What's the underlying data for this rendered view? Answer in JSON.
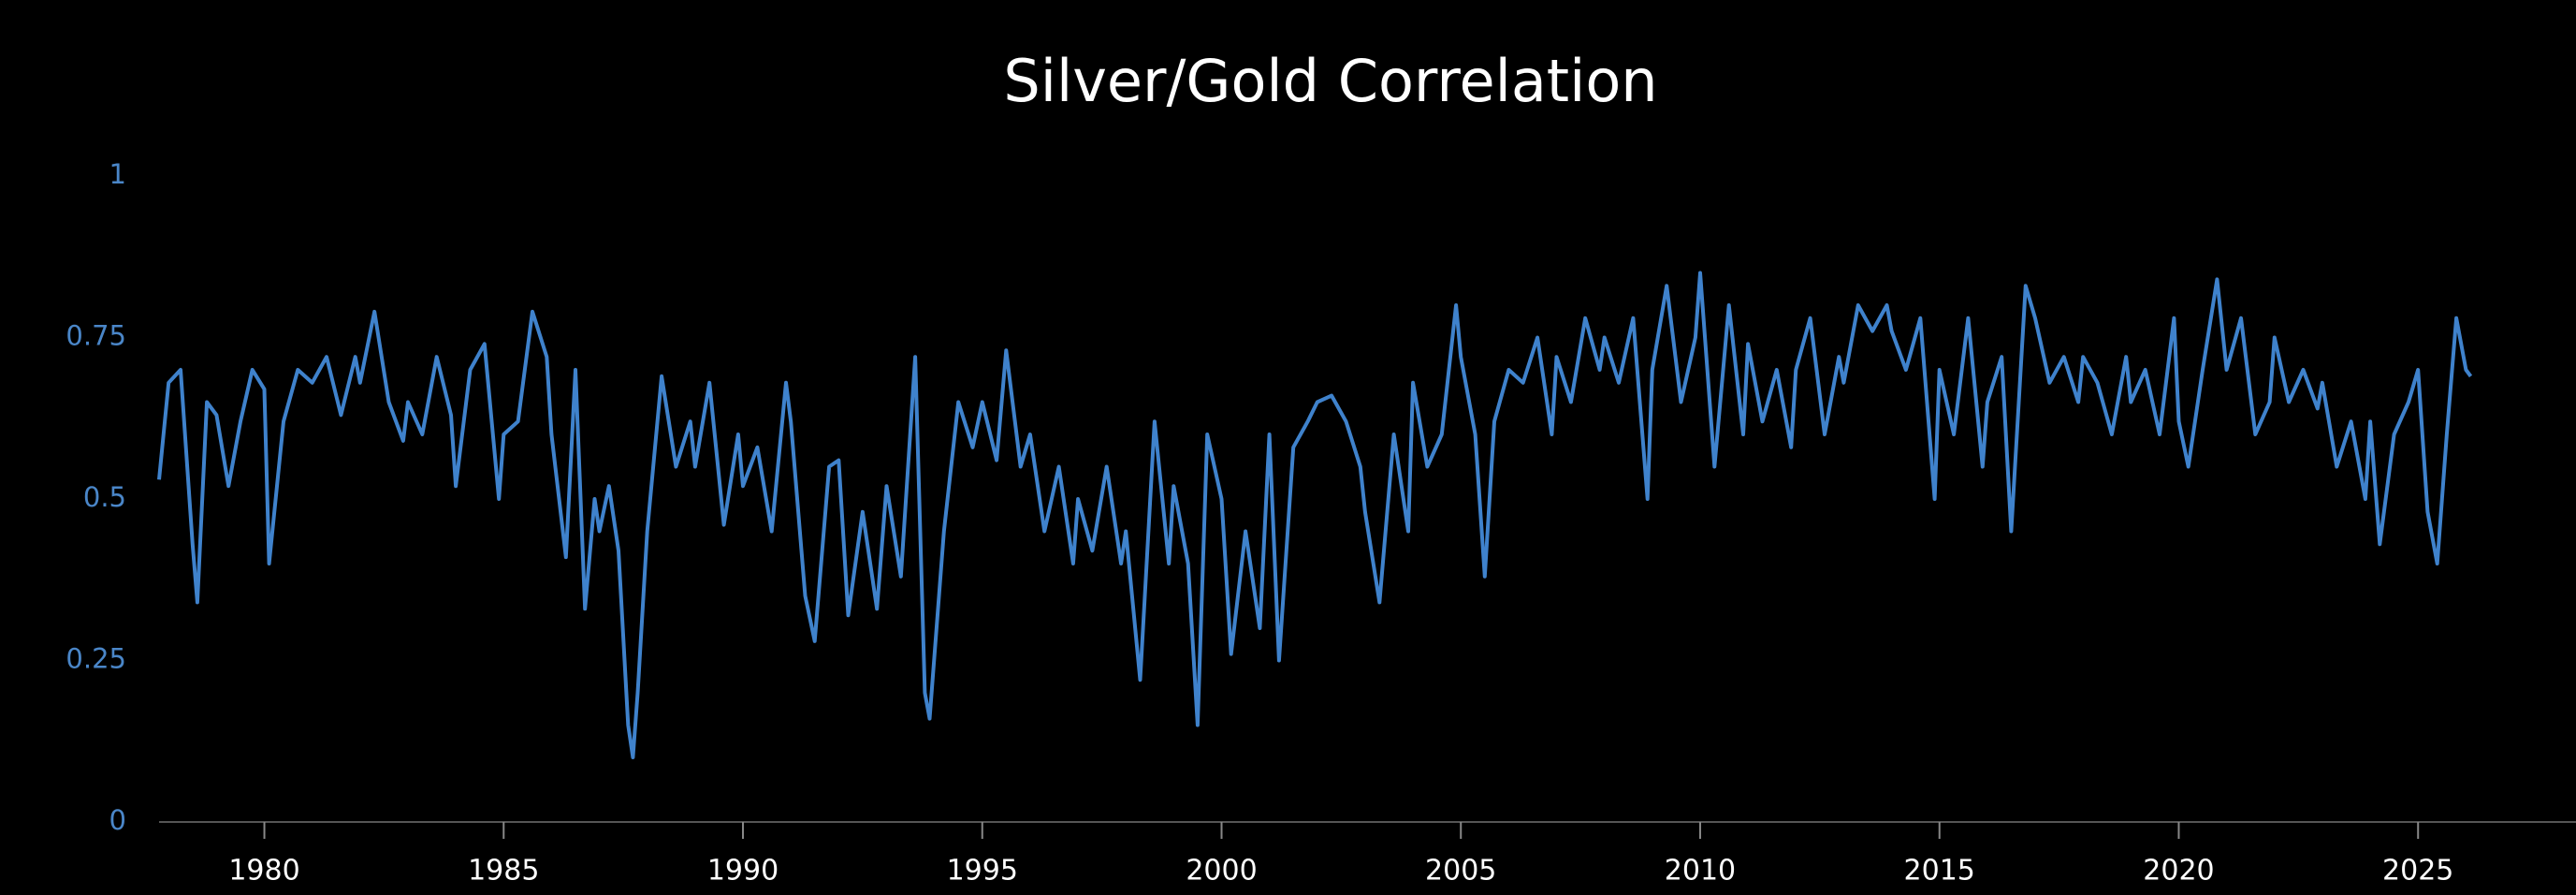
{
  "chart_data": {
    "type": "line",
    "title": "Silver/Gold Correlation",
    "color": "#3f82cc",
    "xlim": [
      1977.8,
      2028.3
    ],
    "xticks": [
      1980,
      1985,
      1990,
      1995,
      2000,
      2005,
      2010,
      2015,
      2020,
      2025
    ],
    "ylim": [
      0,
      1
    ],
    "yticks": [
      0,
      0.25,
      0.5,
      0.75,
      1
    ],
    "x": [
      1977.8,
      1978.0,
      1978.25,
      1978.5,
      1978.6,
      1978.8,
      1979.0,
      1979.25,
      1979.5,
      1979.75,
      1980.0,
      1980.1,
      1980.4,
      1980.7,
      1981.0,
      1981.3,
      1981.6,
      1981.9,
      1982.0,
      1982.3,
      1982.6,
      1982.9,
      1983.0,
      1983.3,
      1983.6,
      1983.9,
      1984.0,
      1984.3,
      1984.6,
      1984.9,
      1985.0,
      1985.3,
      1985.6,
      1985.9,
      1986.0,
      1986.3,
      1986.5,
      1986.7,
      1986.9,
      1987.0,
      1987.2,
      1987.4,
      1987.6,
      1987.7,
      1987.8,
      1988.0,
      1988.3,
      1988.6,
      1988.9,
      1989.0,
      1989.3,
      1989.6,
      1989.9,
      1990.0,
      1990.3,
      1990.6,
      1990.9,
      1991.0,
      1991.3,
      1991.5,
      1991.8,
      1992.0,
      1992.2,
      1992.5,
      1992.8,
      1993.0,
      1993.3,
      1993.6,
      1993.8,
      1993.9,
      1994.2,
      1994.5,
      1994.8,
      1995.0,
      1995.3,
      1995.5,
      1995.8,
      1996.0,
      1996.3,
      1996.6,
      1996.9,
      1997.0,
      1997.3,
      1997.6,
      1997.9,
      1998.0,
      1998.3,
      1998.6,
      1998.9,
      1999.0,
      1999.3,
      1999.5,
      1999.7,
      2000.0,
      2000.2,
      2000.5,
      2000.8,
      2001.0,
      2001.2,
      2001.5,
      2001.8,
      2002.0,
      2002.3,
      2002.6,
      2002.9,
      2003.0,
      2003.3,
      2003.6,
      2003.9,
      2004.0,
      2004.3,
      2004.6,
      2004.9,
      2005.0,
      2005.3,
      2005.5,
      2005.7,
      2006.0,
      2006.3,
      2006.6,
      2006.9,
      2007.0,
      2007.3,
      2007.6,
      2007.9,
      2008.0,
      2008.3,
      2008.6,
      2008.9,
      2009.0,
      2009.3,
      2009.6,
      2009.9,
      2010.0,
      2010.3,
      2010.6,
      2010.9,
      2011.0,
      2011.3,
      2011.6,
      2011.9,
      2012.0,
      2012.3,
      2012.6,
      2012.9,
      2013.0,
      2013.3,
      2013.6,
      2013.9,
      2014.0,
      2014.3,
      2014.6,
      2014.9,
      2015.0,
      2015.3,
      2015.6,
      2015.9,
      2016.0,
      2016.3,
      2016.5,
      2016.8,
      2017.0,
      2017.3,
      2017.6,
      2017.9,
      2018.0,
      2018.3,
      2018.6,
      2018.9,
      2019.0,
      2019.3,
      2019.6,
      2019.9,
      2020.0,
      2020.2,
      2020.5,
      2020.8,
      2021.0,
      2021.3,
      2021.6,
      2021.9,
      2022.0,
      2022.3,
      2022.6,
      2022.9,
      2023.0,
      2023.3,
      2023.6,
      2023.9,
      2024.0,
      2024.2,
      2024.5,
      2024.8,
      2025.0,
      2025.2,
      2025.4,
      2025.6,
      2025.8,
      2026.0,
      2026.1
    ],
    "values": [
      0.53,
      0.68,
      0.7,
      0.43,
      0.34,
      0.65,
      0.63,
      0.52,
      0.62,
      0.7,
      0.67,
      0.4,
      0.62,
      0.7,
      0.68,
      0.72,
      0.63,
      0.72,
      0.68,
      0.79,
      0.65,
      0.59,
      0.65,
      0.6,
      0.72,
      0.63,
      0.52,
      0.7,
      0.74,
      0.5,
      0.6,
      0.62,
      0.79,
      0.72,
      0.6,
      0.41,
      0.7,
      0.33,
      0.5,
      0.45,
      0.52,
      0.42,
      0.15,
      0.1,
      0.2,
      0.45,
      0.69,
      0.55,
      0.62,
      0.55,
      0.68,
      0.46,
      0.6,
      0.52,
      0.58,
      0.45,
      0.68,
      0.62,
      0.35,
      0.28,
      0.55,
      0.56,
      0.32,
      0.48,
      0.33,
      0.52,
      0.38,
      0.72,
      0.2,
      0.16,
      0.45,
      0.65,
      0.58,
      0.65,
      0.56,
      0.73,
      0.55,
      0.6,
      0.45,
      0.55,
      0.4,
      0.5,
      0.42,
      0.55,
      0.4,
      0.45,
      0.22,
      0.62,
      0.4,
      0.52,
      0.4,
      0.15,
      0.6,
      0.5,
      0.26,
      0.45,
      0.3,
      0.6,
      0.25,
      0.58,
      0.62,
      0.65,
      0.66,
      0.62,
      0.55,
      0.48,
      0.34,
      0.6,
      0.45,
      0.68,
      0.55,
      0.6,
      0.8,
      0.72,
      0.6,
      0.38,
      0.62,
      0.7,
      0.68,
      0.75,
      0.6,
      0.72,
      0.65,
      0.78,
      0.7,
      0.75,
      0.68,
      0.78,
      0.5,
      0.7,
      0.83,
      0.65,
      0.75,
      0.85,
      0.55,
      0.8,
      0.6,
      0.74,
      0.62,
      0.7,
      0.58,
      0.7,
      0.78,
      0.6,
      0.72,
      0.68,
      0.8,
      0.76,
      0.8,
      0.76,
      0.7,
      0.78,
      0.5,
      0.7,
      0.6,
      0.78,
      0.55,
      0.65,
      0.72,
      0.45,
      0.83,
      0.78,
      0.68,
      0.72,
      0.65,
      0.72,
      0.68,
      0.6,
      0.72,
      0.65,
      0.7,
      0.6,
      0.78,
      0.62,
      0.55,
      0.7,
      0.84,
      0.7,
      0.78,
      0.6,
      0.65,
      0.75,
      0.65,
      0.7,
      0.64,
      0.68,
      0.55,
      0.62,
      0.5,
      0.62,
      0.43,
      0.6,
      0.65,
      0.7,
      0.48,
      0.4,
      0.6,
      0.78,
      0.7,
      0.69
    ]
  }
}
